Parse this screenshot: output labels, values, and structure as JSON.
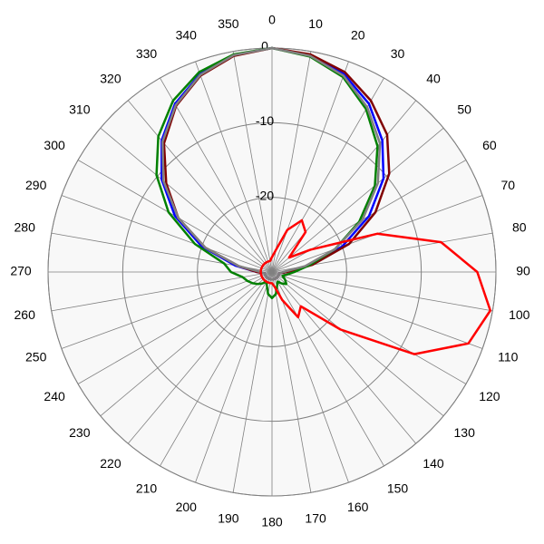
{
  "chart_data": {
    "type": "polar",
    "theta": [
      0,
      10,
      20,
      30,
      40,
      50,
      60,
      70,
      80,
      90,
      100,
      110,
      120,
      130,
      140,
      150,
      160,
      170,
      180,
      190,
      200,
      210,
      220,
      230,
      240,
      250,
      260,
      270,
      280,
      290,
      300,
      310,
      320,
      330,
      340,
      350
    ],
    "rlim": [
      -30,
      0
    ],
    "rticks": [
      0,
      -10,
      -20
    ],
    "grid": true,
    "series": [
      {
        "color": "#0000ff",
        "values": [
          0,
          -0.5,
          -1.8,
          -4,
          -7,
          -10.5,
          -15,
          -20,
          -25,
          -28,
          -29,
          -29,
          -29,
          -29,
          -29,
          -29,
          -29,
          -29,
          -29,
          -29,
          -29,
          -29,
          -29,
          -29,
          -29,
          -29,
          -29,
          -28,
          -25,
          -20,
          -15,
          -10.7,
          -7,
          -4,
          -1.8,
          -0.5
        ]
      },
      {
        "color": "#800000",
        "values": [
          0,
          -0.4,
          -1.5,
          -3.5,
          -6,
          -9.5,
          -14,
          -19,
          -24.5,
          -28,
          -29,
          -29,
          -29,
          -29,
          -29,
          -29,
          -29,
          -29,
          -29,
          -29,
          -29,
          -29,
          -29,
          -29,
          -29,
          -29,
          -29,
          -28,
          -25.5,
          -20.5,
          -15.5,
          -11.5,
          -7.5,
          -4.3,
          -2,
          -0.6
        ]
      },
      {
        "color": "#008000",
        "values": [
          0,
          -0.7,
          -2.2,
          -4.8,
          -8,
          -12,
          -16.5,
          -21,
          -25,
          -27,
          -28,
          -28.5,
          -28,
          -27.5,
          -28,
          -28.5,
          -28,
          -27,
          -26.5,
          -27,
          -28,
          -28.5,
          -28,
          -27.5,
          -27,
          -26.5,
          -26,
          -24.5,
          -23.5,
          -19,
          -14,
          -9.8,
          -6.3,
          -3.5,
          -1.5,
          -0.4
        ]
      },
      {
        "color": "#808080",
        "values": [
          0,
          -0.6,
          -2,
          -4.5,
          -7.5,
          -11.5,
          -16,
          -21,
          -25.5,
          -28.5,
          -29,
          -29,
          -29,
          -29,
          -29,
          -29,
          -29,
          -29,
          -29,
          -29,
          -29,
          -29,
          -29,
          -29,
          -29,
          -29,
          -29,
          -28.5,
          -25.5,
          -20.5,
          -15.5,
          -11,
          -7.2,
          -4.2,
          -1.9,
          -0.5
        ]
      },
      {
        "color": "#ff0000",
        "values": [
          -28,
          -27,
          -24,
          -22,
          -23,
          -27,
          -24,
          -15,
          -7,
          -2.5,
          -0.3,
          -2,
          -8,
          -18,
          -24,
          -23,
          -26,
          -28,
          -28.5,
          -28.5,
          -28.5,
          -28.5,
          -28.5,
          -28.5,
          -28.5,
          -28.5,
          -28.5,
          -28.5,
          -28.5,
          -28.5,
          -28.5,
          -28.5,
          -28.5,
          -28.5,
          -28.5,
          -28.5
        ]
      }
    ]
  }
}
